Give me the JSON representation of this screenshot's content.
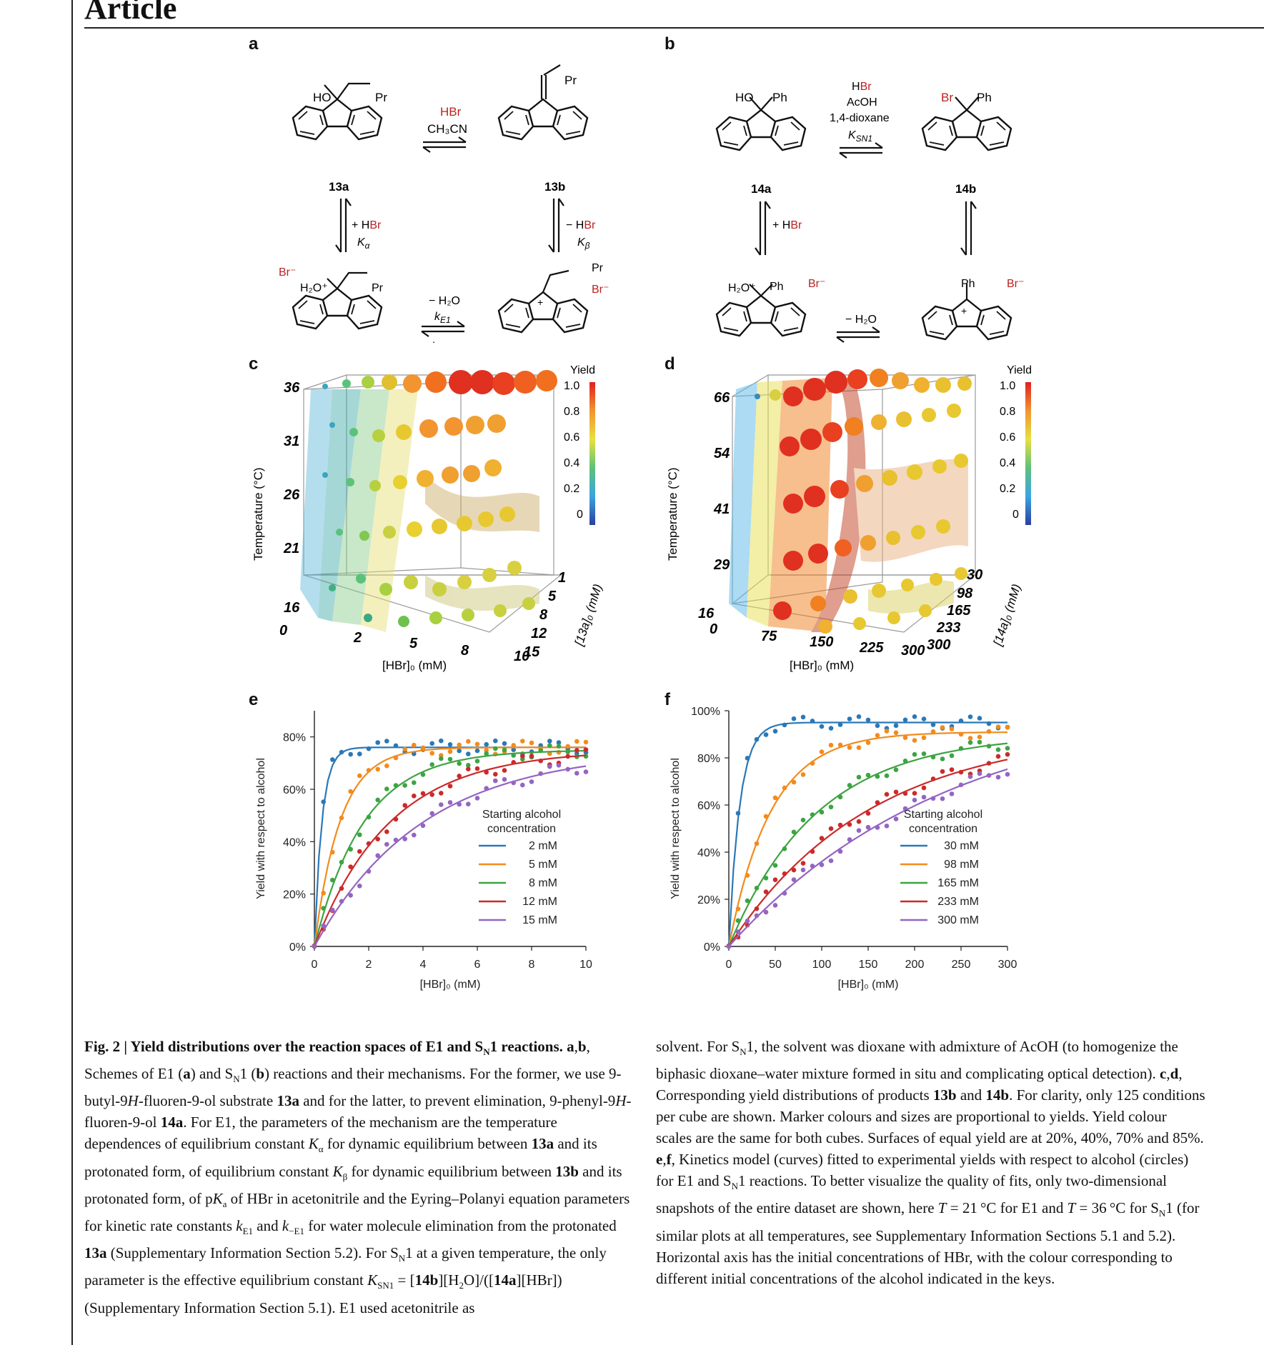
{
  "header": {
    "title": "Article"
  },
  "panels": {
    "a": "a",
    "b": "b",
    "c": "c",
    "d": "d",
    "e": "e",
    "f": "f"
  },
  "scheme_a": {
    "compounds": {
      "c13a": "13a",
      "c13b": "13b"
    },
    "labels": {
      "ho": "HO",
      "pr": "Pr",
      "hbr": "HBr",
      "ch3cn": "CH₃CN",
      "plus_hbr": "+ HBr",
      "minus_hbr": "− HBr",
      "k_alpha": "Kα",
      "k_beta": "Kβ",
      "br_minus": "Br⁻",
      "h2o_plus": "H₂O⁺",
      "minus_h2o": "− H₂O",
      "k_e1": "kE1",
      "k_minus_e1": "k−E1",
      "plus": "+"
    }
  },
  "scheme_b": {
    "compounds": {
      "c14a": "14a",
      "c14b": "14b"
    },
    "labels": {
      "ho": "HO",
      "ph": "Ph",
      "br": "Br",
      "hbr": "HBr",
      "acoh": "AcOH",
      "dioxane": "1,4-dioxane",
      "k_sn1": "KSN1",
      "plus_hbr": "+ HBr",
      "br_minus": "Br⁻",
      "h2o_plus": "H₂O⁺",
      "minus_h2o": "− H₂O",
      "plus": "+"
    }
  },
  "cube_c": {
    "ylabel": "Temperature (°C)",
    "xlabel": "[HBr]₀ (mM)",
    "zlabel": "[13a]₀ (mM)",
    "yticks": [
      "16",
      "21",
      "26",
      "31",
      "36"
    ],
    "xticks": [
      "0",
      "2",
      "5",
      "8",
      "10"
    ],
    "zticks": [
      "1",
      "5",
      "8",
      "12",
      "15"
    ],
    "colorbar_title": "Yield",
    "colorbar_ticks": [
      "1.0",
      "0.8",
      "0.6",
      "0.4",
      "0.2",
      "0"
    ]
  },
  "cube_d": {
    "ylabel": "Temperature (°C)",
    "xlabel": "[HBr]₀ (mM)",
    "zlabel": "[14a]₀ (mM)",
    "yticks": [
      "16",
      "29",
      "41",
      "54",
      "66"
    ],
    "xticks": [
      "0",
      "75",
      "150",
      "225",
      "300"
    ],
    "zticks": [
      "30",
      "98",
      "165",
      "233",
      "300"
    ],
    "colorbar_title": "Yield",
    "colorbar_ticks": [
      "1.0",
      "0.8",
      "0.6",
      "0.4",
      "0.2",
      "0"
    ]
  },
  "chart_data": [
    {
      "id": "e",
      "type": "line",
      "xlabel": "[HBr]₀ (mM)",
      "ylabel": "Yield with respect to alcohol",
      "xlim": [
        0,
        10
      ],
      "ylim": [
        0,
        90
      ],
      "xticks": [
        "0",
        "2",
        "4",
        "6",
        "8",
        "10"
      ],
      "yticks": [
        "0%",
        "20%",
        "40%",
        "60%",
        "80%"
      ],
      "legend_title": "Starting alcohol concentration",
      "legend_title_lines": [
        "Starting alcohol",
        "concentration"
      ],
      "series": [
        {
          "name": "2 mM",
          "color": "#2a78b7",
          "k": 3.6,
          "plateau": 76
        },
        {
          "name": "5 mM",
          "color": "#f28b1d",
          "k": 1.05,
          "plateau": 76
        },
        {
          "name": "8 mM",
          "color": "#3da443",
          "k": 0.55,
          "plateau": 75
        },
        {
          "name": "12 mM",
          "color": "#cc2a2a",
          "k": 0.36,
          "plateau": 75
        },
        {
          "name": "15 mM",
          "color": "#9465c1",
          "k": 0.25,
          "plateau": 75
        }
      ]
    },
    {
      "id": "f",
      "type": "line",
      "xlabel": "[HBr]₀ (mM)",
      "ylabel": "Yield with respect to alcohol",
      "xlim": [
        0,
        300
      ],
      "ylim": [
        0,
        100
      ],
      "xticks": [
        "0",
        "50",
        "100",
        "150",
        "200",
        "250",
        "300"
      ],
      "yticks": [
        "0%",
        "20%",
        "40%",
        "60%",
        "80%",
        "100%"
      ],
      "legend_title": "Starting alcohol concentration",
      "legend_title_lines": [
        "Starting alcohol",
        "concentration"
      ],
      "series": [
        {
          "name": "30 mM",
          "color": "#2a78b7",
          "k": 0.085,
          "plateau": 95
        },
        {
          "name": "98 mM",
          "color": "#f28b1d",
          "k": 0.022,
          "plateau": 91
        },
        {
          "name": "165 mM",
          "color": "#3da443",
          "k": 0.0105,
          "plateau": 90
        },
        {
          "name": "233 mM",
          "color": "#cc2a2a",
          "k": 0.0066,
          "plateau": 92
        },
        {
          "name": "300 mM",
          "color": "#9465c1",
          "k": 0.0042,
          "plateau": 105
        }
      ]
    }
  ],
  "caption": {
    "col1": [
      {
        "t": "Fig. 2 | Yield distributions over the reaction spaces of E1 and S",
        "b": true
      },
      {
        "t": "N",
        "b": true,
        "sub": true
      },
      {
        "t": "1 reactions. ",
        "b": true
      },
      {
        "t": "a",
        "b": true
      },
      {
        "t": ","
      },
      {
        "t": "b",
        "b": true
      },
      {
        "t": ", Schemes of E1 ("
      },
      {
        "t": "a",
        "b": true
      },
      {
        "t": ") and S"
      },
      {
        "t": "N",
        "sub": true
      },
      {
        "t": "1 ("
      },
      {
        "t": "b",
        "b": true
      },
      {
        "t": ") reactions and their mechanisms. For the former, we use 9-butyl-9"
      },
      {
        "t": "H",
        "i": true
      },
      {
        "t": "-fluoren-9-ol substrate "
      },
      {
        "t": "13a",
        "b": true
      },
      {
        "t": " and for the latter, to prevent elimination, 9-phenyl-9"
      },
      {
        "t": "H",
        "i": true
      },
      {
        "t": "-fluoren-9-ol "
      },
      {
        "t": "14a",
        "b": true
      },
      {
        "t": ". For E1, the parameters of the mechanism are the temperature dependences of equilibrium constant "
      },
      {
        "t": "K",
        "i": true
      },
      {
        "t": "α",
        "sub": true
      },
      {
        "t": " for dynamic equilibrium between "
      },
      {
        "t": "13a",
        "b": true
      },
      {
        "t": " and its protonated form, of equilibrium constant "
      },
      {
        "t": "K",
        "i": true
      },
      {
        "t": "β",
        "sub": true
      },
      {
        "t": " for dynamic equilibrium between "
      },
      {
        "t": "13b",
        "b": true
      },
      {
        "t": " and its protonated form, of p"
      },
      {
        "t": "K",
        "i": true
      },
      {
        "t": "a",
        "sub": true
      },
      {
        "t": " of HBr in acetonitrile and the Eyring–Polanyi equation parameters for kinetic rate constants "
      },
      {
        "t": "k",
        "i": true
      },
      {
        "t": "E1",
        "sub": true
      },
      {
        "t": " and "
      },
      {
        "t": "k",
        "i": true
      },
      {
        "t": "−E1",
        "sub": true
      },
      {
        "t": " for water molecule elimination from the protonated "
      },
      {
        "t": "13a",
        "b": true
      },
      {
        "t": " (Supplementary Information Section 5.2). For S"
      },
      {
        "t": "N",
        "sub": true
      },
      {
        "t": "1 at a given temperature, the only parameter is the effective equilibrium constant "
      },
      {
        "t": "K",
        "i": true
      },
      {
        "t": "SN1",
        "sub": true
      },
      {
        "t": " = ["
      },
      {
        "t": "14b",
        "b": true
      },
      {
        "t": "][H"
      },
      {
        "t": "2",
        "sub": true
      },
      {
        "t": "O]/(["
      },
      {
        "t": "14a",
        "b": true
      },
      {
        "t": "][HBr]) (Supplementary Information Section 5.1). E1 used acetonitrile as"
      }
    ],
    "col2": [
      {
        "t": "solvent. For S"
      },
      {
        "t": "N",
        "sub": true
      },
      {
        "t": "1, the solvent was dioxane with admixture of AcOH (to homogenize the biphasic dioxane–water mixture formed in situ and complicating optical detection). "
      },
      {
        "t": "c",
        "b": true
      },
      {
        "t": ","
      },
      {
        "t": "d",
        "b": true
      },
      {
        "t": ", Corresponding yield distributions of products "
      },
      {
        "t": "13b",
        "b": true
      },
      {
        "t": " and "
      },
      {
        "t": "14b",
        "b": true
      },
      {
        "t": ". For clarity, only 125 conditions per cube are shown. Marker colours and sizes are proportional to yields. Yield colour scales are the same for both cubes. Surfaces of equal yield are at 20%, 40%, 70% and 85%. "
      },
      {
        "t": "e",
        "b": true
      },
      {
        "t": ","
      },
      {
        "t": "f",
        "b": true
      },
      {
        "t": ", Kinetics model (curves) fitted to experimental yields with respect to alcohol (circles) for E1 and S"
      },
      {
        "t": "N",
        "sub": true
      },
      {
        "t": "1 reactions. To better visualize the quality of fits, only two-dimensional snapshots of the entire dataset are shown, here "
      },
      {
        "t": "T",
        "i": true
      },
      {
        "t": " = 21 °C for E1 and "
      },
      {
        "t": "T",
        "i": true
      },
      {
        "t": " = 36 °C for S"
      },
      {
        "t": "N",
        "sub": true
      },
      {
        "t": "1 (for similar plots at all temperatures, see Supplementary Information Sections 5.1 and 5.2). Horizontal axis has the initial concentrations of HBr, with the colour corresponding to different initial concentrations of the alcohol indicated in the keys."
      }
    ]
  }
}
